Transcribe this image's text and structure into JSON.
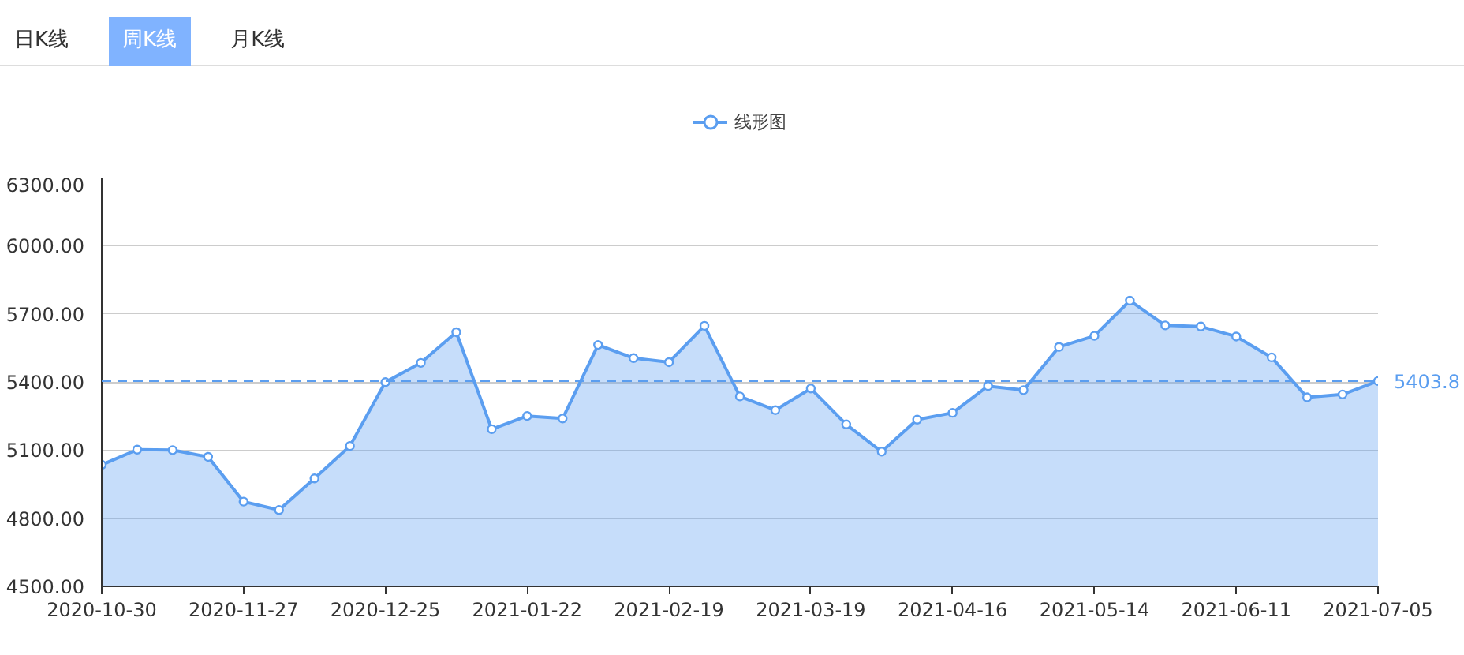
{
  "chart_data": {
    "type": "area",
    "categories": [
      "2020-10-30",
      null,
      null,
      null,
      "2020-11-27",
      null,
      null,
      null,
      "2020-12-25",
      null,
      null,
      null,
      "2021-01-22",
      null,
      null,
      null,
      "2021-02-19",
      null,
      null,
      null,
      "2021-03-19",
      null,
      null,
      null,
      "2021-04-16",
      null,
      null,
      null,
      "2021-05-14",
      null,
      null,
      null,
      "2021-06-11",
      null,
      null,
      null,
      "2021-07-05"
    ],
    "series": [
      {
        "name": "线形图",
        "color": "#5b9ef0",
        "values": [
          5035,
          5102,
          5100,
          5070,
          4873,
          4836,
          4975,
          5118,
          5399,
          5484,
          5619,
          5192,
          5250,
          5239,
          5563,
          5505,
          5487,
          5647,
          5336,
          5276,
          5371,
          5213,
          5093,
          5234,
          5264,
          5382,
          5364,
          5554,
          5603,
          5758,
          5649,
          5644,
          5600,
          5508,
          5332,
          5345,
          5403.8
        ]
      }
    ],
    "ylim": [
      4500,
      6300
    ],
    "yticks": [
      {
        "value": 4500,
        "label": "4500.00"
      },
      {
        "value": 4800,
        "label": "4800.00"
      },
      {
        "value": 5100,
        "label": "5100.00"
      },
      {
        "value": 5400,
        "label": "5400.00"
      },
      {
        "value": 5700,
        "label": "5700.00"
      },
      {
        "value": 6000,
        "label": "6000.00"
      },
      {
        "value": 6300,
        "label": "6300.00"
      }
    ],
    "ref_lines": [
      {
        "axis": "y",
        "value": 5403.8,
        "label": "5403.8",
        "color": "#5b9ef0",
        "line_style": "dashed"
      }
    ],
    "annotations": [
      "日K线",
      "周K线",
      "月K线"
    ],
    "grid": "y",
    "legend": "top",
    "marker": "circle",
    "line_style": "solid"
  }
}
